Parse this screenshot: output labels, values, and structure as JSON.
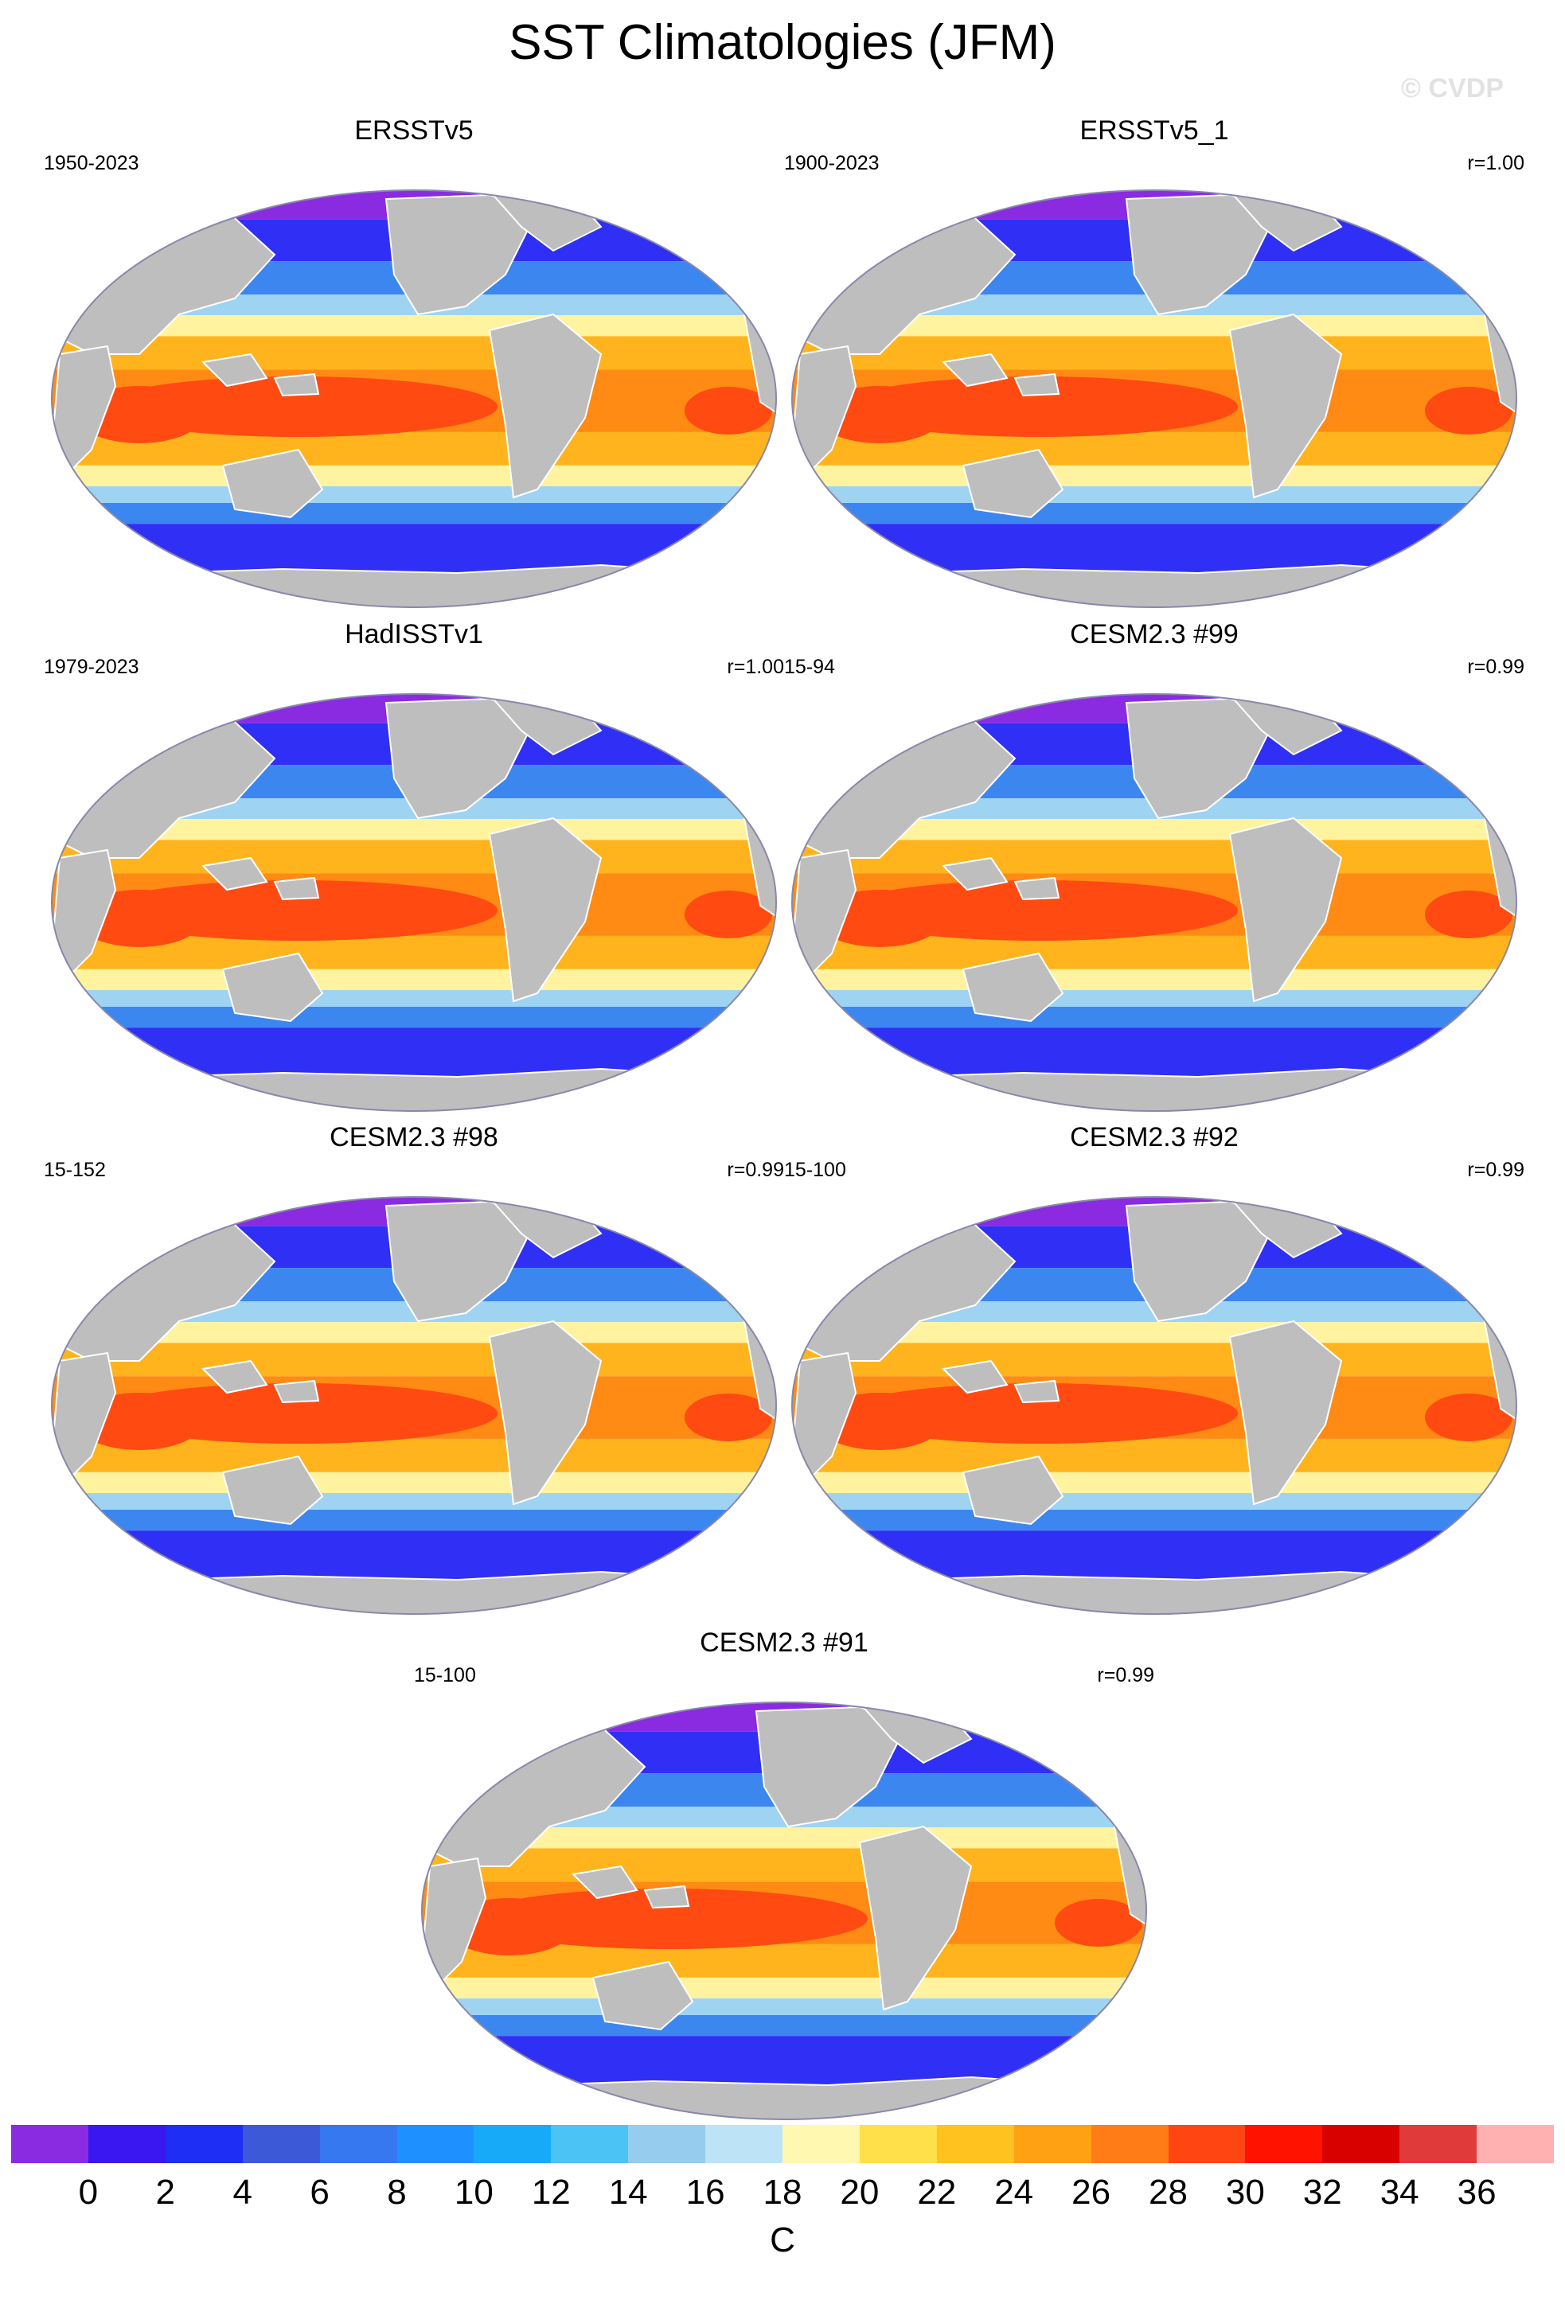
{
  "figure": {
    "title": "SST Climatologies (JFM)",
    "watermark": "© CVDP"
  },
  "panels": [
    {
      "title": "ERSSTv5",
      "left": "1950-2023",
      "right": ""
    },
    {
      "title": "ERSSTv5_1",
      "left": "1900-2023",
      "right": "r=1.00"
    },
    {
      "title": "HadISSTv1",
      "left": "1979-2023",
      "right": "r=1.00"
    },
    {
      "title": "CESM2.3 #99",
      "left": "15-94",
      "right": "r=0.99"
    },
    {
      "title": "CESM2.3 #98",
      "left": "15-152",
      "right": "r=0.99"
    },
    {
      "title": "CESM2.3 #92",
      "left": "15-100",
      "right": "r=0.99"
    },
    {
      "title": "CESM2.3 #91",
      "left": "15-100",
      "right": "r=0.99"
    }
  ],
  "colorbar": {
    "unit": "C",
    "labels": [
      "0",
      "2",
      "4",
      "6",
      "8",
      "10",
      "12",
      "14",
      "16",
      "18",
      "20",
      "22",
      "24",
      "26",
      "28",
      "30",
      "32",
      "34",
      "36"
    ],
    "colors": [
      "#8a2be2",
      "#3a17f0",
      "#1e2ef5",
      "#3c5ad8",
      "#3578f0",
      "#1e90ff",
      "#16aaf8",
      "#4cc3f5",
      "#96cdee",
      "#bde3f7",
      "#fff8b0",
      "#ffe04a",
      "#ffc21e",
      "#ffa112",
      "#ff7c16",
      "#ff4512",
      "#ff1200",
      "#d90000",
      "#e03a3a",
      "#ffb0b0"
    ]
  },
  "map_colors": {
    "land": "#bebebe",
    "polar": "#8a2be2",
    "cold": "#2f2ff5",
    "cool": "#3c86f0",
    "mild": "#9fd3f2",
    "pale": "#fff3a0",
    "warm": "#ffb41e",
    "hot": "#ff8a14",
    "hottest": "#ff4a12"
  }
}
